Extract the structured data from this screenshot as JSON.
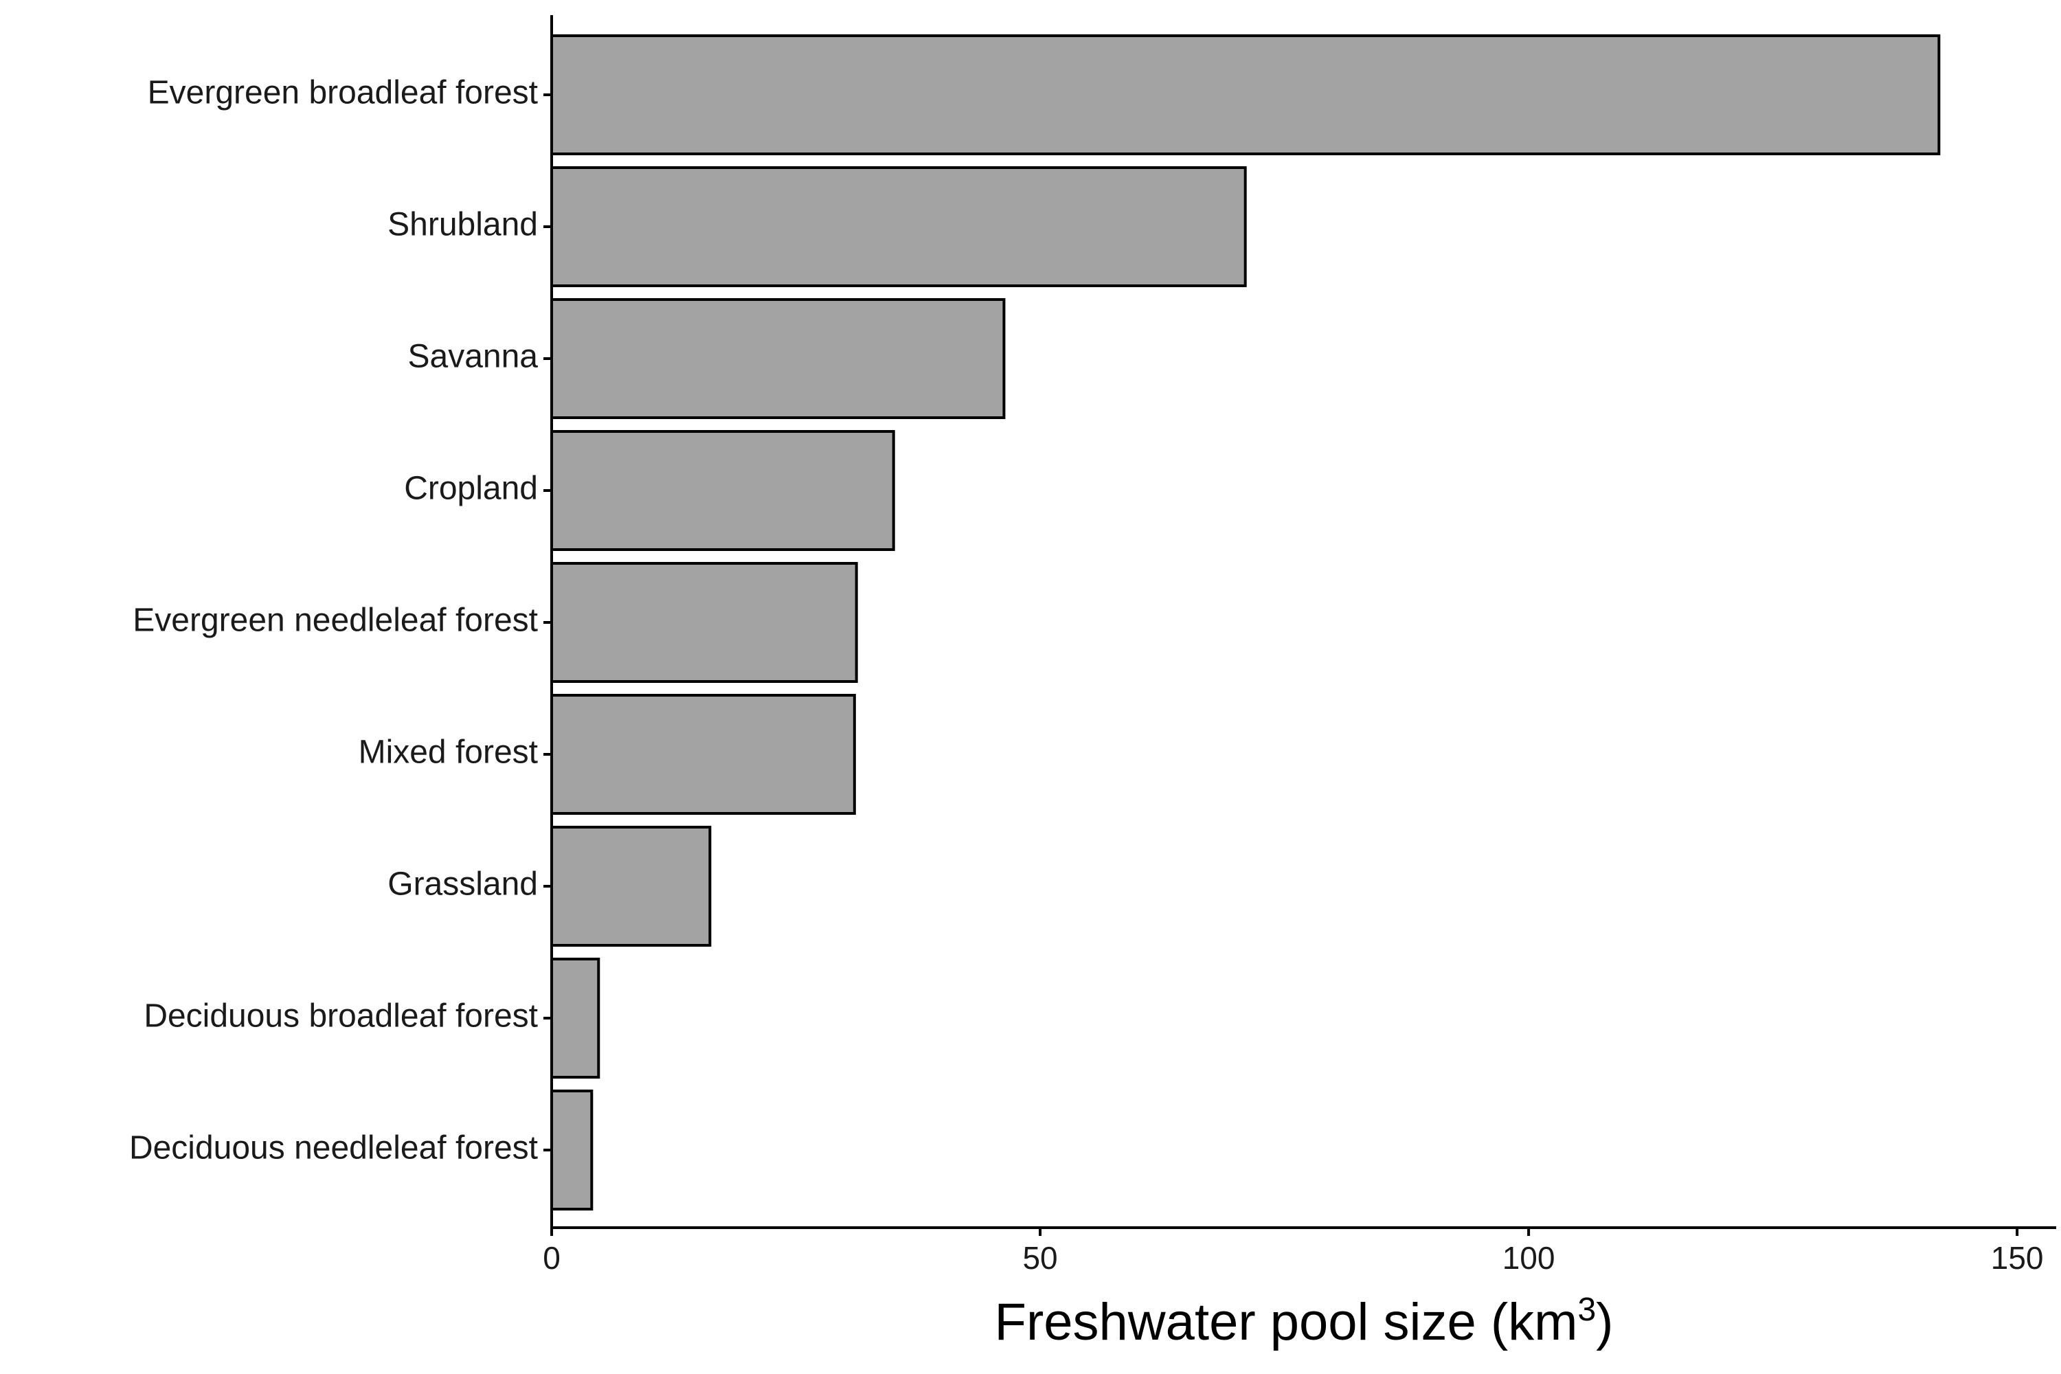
{
  "chart_data": {
    "type": "bar",
    "orientation": "horizontal",
    "categories": [
      "Evergreen broadleaf forest",
      "Shrubland",
      "Savanna",
      "Cropland",
      "Evergreen needleleaf forest",
      "Mixed forest",
      "Grassland",
      "Deciduous broadleaf forest",
      "Deciduous needleleaf forest"
    ],
    "values": [
      142,
      71,
      46.3,
      35,
      31.2,
      31,
      16.2,
      4.8,
      4.1
    ],
    "xlabel": "Freshwater pool size (km",
    "xlabel_superscript": "3",
    "xlabel_suffix": ")",
    "ylabel": "",
    "xlim": [
      0,
      154
    ],
    "x_ticks": [
      0,
      50,
      100,
      150
    ],
    "grid": false,
    "legend": "none",
    "colors": {
      "bar_fill": "#a3a3a3",
      "bar_stroke": "#000000",
      "axis": "#000000",
      "text": "#1a1a1a"
    }
  }
}
